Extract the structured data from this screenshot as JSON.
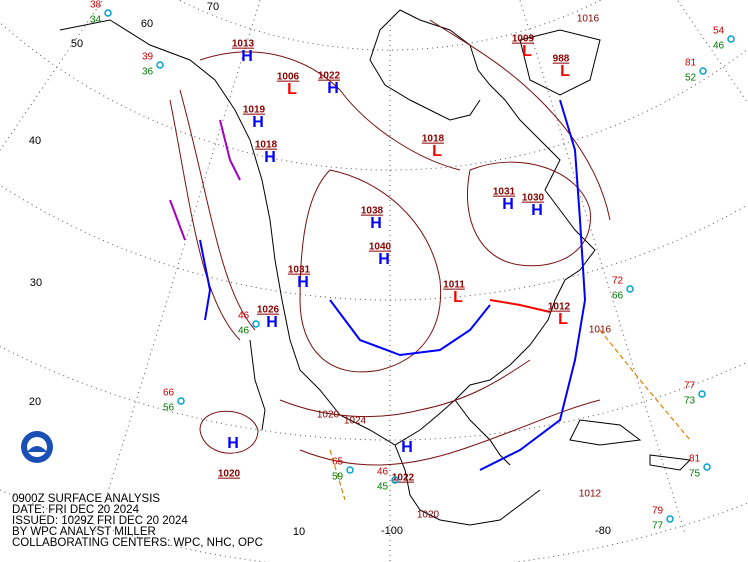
{
  "caption": [
    "0900Z SURFACE ANALYSIS",
    "DATE: FRI DEC 20 2024",
    "ISSUED: 1029Z FRI DEC 20 2024",
    "BY WPC ANALYST MILLER",
    "COLLABORATING CENTERS: WPC, NHC, OPC"
  ],
  "latitude_labels": [
    "60",
    "50",
    "40",
    "30",
    "20",
    "10"
  ],
  "longitude_labels": [
    "70",
    "-100",
    "-80"
  ],
  "pressure_centers": [
    {
      "symbol": "H",
      "pressure": "1013"
    },
    {
      "symbol": "H",
      "pressure": "1022"
    },
    {
      "symbol": "H",
      "pressure": "1019"
    },
    {
      "symbol": "H",
      "pressure": "1018"
    },
    {
      "symbol": "H",
      "pressure": "1038"
    },
    {
      "symbol": "H",
      "pressure": "1040"
    },
    {
      "symbol": "H",
      "pressure": "1031"
    },
    {
      "symbol": "H",
      "pressure": "1026"
    },
    {
      "symbol": "H",
      "pressure": "1031"
    },
    {
      "symbol": "H",
      "pressure": "1030"
    },
    {
      "symbol": "H",
      "pressure": "1020"
    },
    {
      "symbol": "H",
      "pressure": "1022"
    },
    {
      "symbol": "L",
      "pressure": "1009"
    },
    {
      "symbol": "L",
      "pressure": "988"
    },
    {
      "symbol": "L",
      "pressure": "1012"
    },
    {
      "symbol": "L",
      "pressure": "1011"
    },
    {
      "symbol": "L",
      "pressure": "1018"
    },
    {
      "symbol": "L",
      "pressure": "1006"
    }
  ],
  "station_plots": [
    {
      "temperature": "38",
      "dewpoint": "34"
    },
    {
      "temperature": "54",
      "dewpoint": "46"
    },
    {
      "temperature": "81",
      "dewpoint": "52"
    },
    {
      "temperature": "39",
      "dewpoint": "36"
    },
    {
      "temperature": "72",
      "dewpoint": "66"
    },
    {
      "temperature": "66",
      "dewpoint": "56"
    },
    {
      "temperature": "77",
      "dewpoint": "73"
    },
    {
      "temperature": "46",
      "dewpoint": "46"
    },
    {
      "temperature": "81",
      "dewpoint": "75"
    },
    {
      "temperature": "79",
      "dewpoint": "77"
    },
    {
      "temperature": "65",
      "dewpoint": "59"
    },
    {
      "temperature": "46",
      "dewpoint": "45"
    }
  ],
  "isobar_labels": [
    "1016",
    "1020",
    "1024",
    "1012",
    "1016",
    "1020"
  ]
}
